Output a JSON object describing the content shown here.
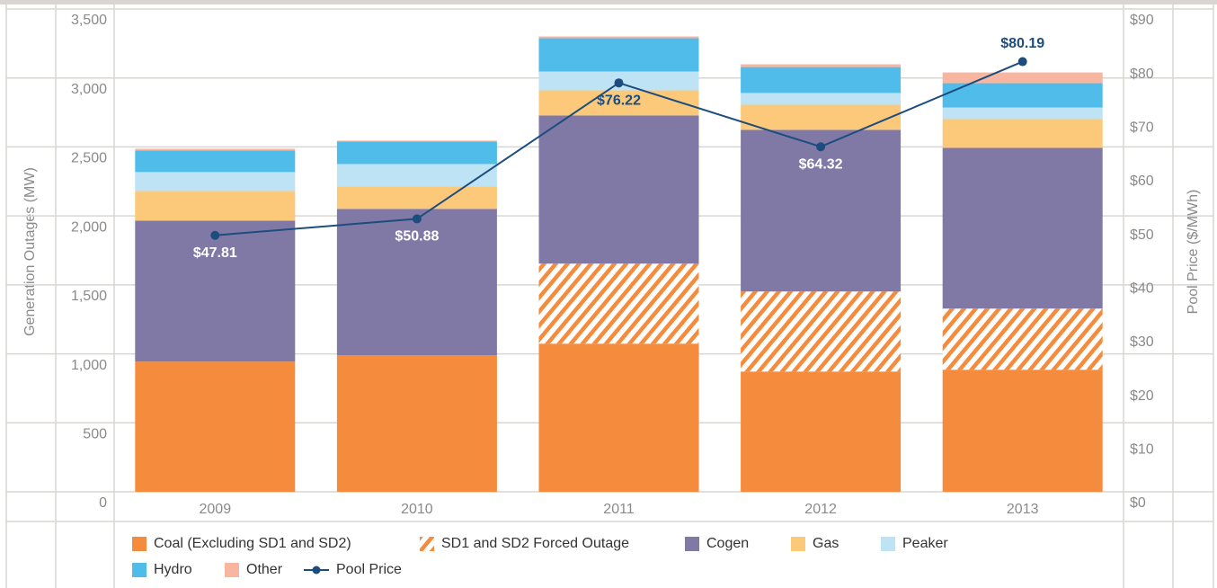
{
  "chart_data": {
    "type": "bar",
    "stacked": true,
    "y_label": "Generation Outages (MW)",
    "y2_label": "Pool Price ($/MWh)",
    "categories": [
      "2009",
      "2010",
      "2011",
      "2012",
      "2013"
    ],
    "series": [
      {
        "name": "Coal (Excluding SD1 and SD2)",
        "color": "#f58b3c",
        "values": [
          944,
          990,
          1074,
          872,
          885
        ]
      },
      {
        "name": "SD1 and SD2 Forced Outage",
        "color": "#f58b3c",
        "hatch": true,
        "values": [
          0,
          0,
          580,
          580,
          443
        ]
      },
      {
        "name": "Cogen",
        "color": "#8079a6",
        "values": [
          1022,
          1061,
          1074,
          1172,
          1165
        ]
      },
      {
        "name": "Gas",
        "color": "#fcc97a",
        "values": [
          215,
          163,
          182,
          182,
          209
        ]
      },
      {
        "name": "Peaker",
        "color": "#bde3f5",
        "values": [
          137,
          162,
          137,
          85,
          84
        ]
      },
      {
        "name": "Hydro",
        "color": "#4fbce9",
        "values": [
          156,
          163,
          241,
          188,
          176
        ]
      },
      {
        "name": "Other",
        "color": "#f8b6a0",
        "values": [
          13,
          7,
          13,
          20,
          78
        ]
      },
      {
        "name": "Pool Price",
        "type": "line",
        "axis": "y2",
        "color": "#1c4d7e",
        "values": [
          47.81,
          50.88,
          76.22,
          64.32,
          80.19
        ],
        "value_labels": [
          "$47.81",
          "$50.88",
          "$76.22",
          "$64.32",
          "$80.19"
        ]
      }
    ],
    "ylim": [
      0,
      3500
    ],
    "yticks": [
      0,
      500,
      {
        "value": 1000,
        "label": "1,000"
      },
      {
        "value": 1500,
        "label": "1,500"
      },
      {
        "value": 2000,
        "label": "2,000"
      },
      {
        "value": 2500,
        "label": "2,500"
      },
      {
        "value": 3000,
        "label": "3,000"
      },
      {
        "value": 3500,
        "label": "3,500"
      }
    ],
    "y2lim": [
      0,
      90
    ],
    "y2ticks": [
      {
        "value": 0,
        "label": "$0"
      },
      {
        "value": 10,
        "label": "$10"
      },
      {
        "value": 20,
        "label": "$20"
      },
      {
        "value": 30,
        "label": "$30"
      },
      {
        "value": 40,
        "label": "$40"
      },
      {
        "value": 50,
        "label": "$50"
      },
      {
        "value": 60,
        "label": "$60"
      },
      {
        "value": 70,
        "label": "$70"
      },
      {
        "value": 80,
        "label": "$80"
      },
      {
        "value": 90,
        "label": "$90"
      }
    ],
    "grid": true
  }
}
